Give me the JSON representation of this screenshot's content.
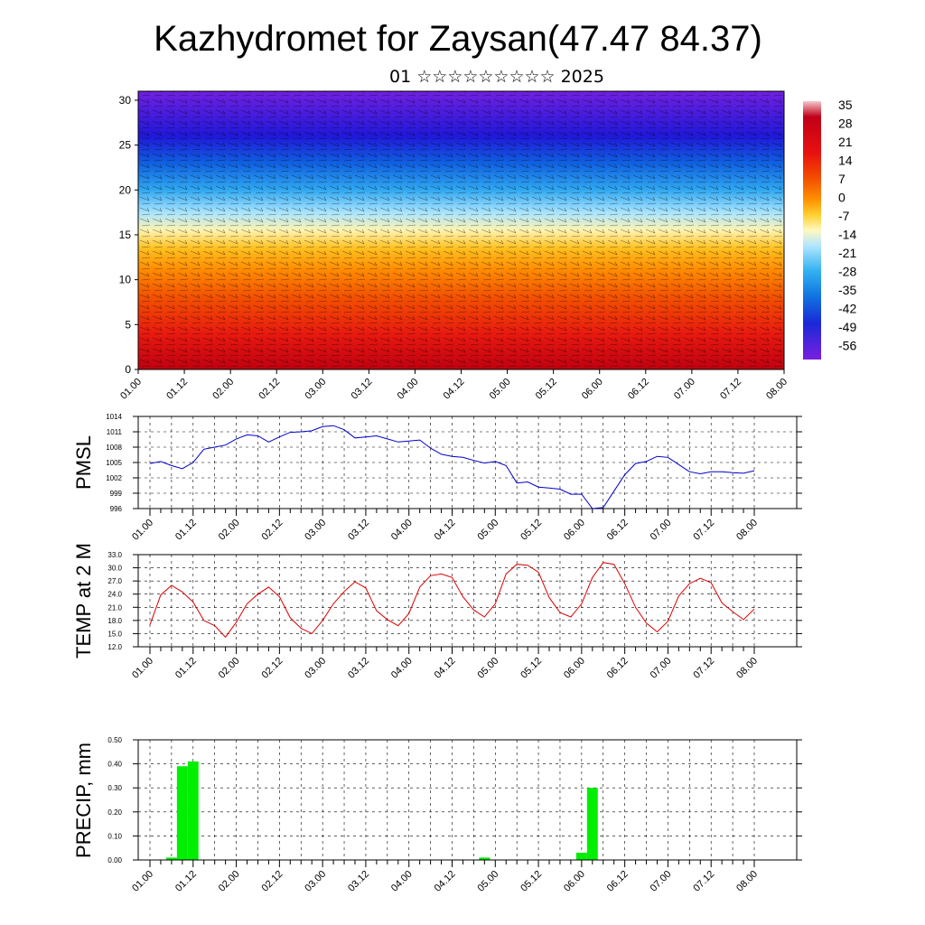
{
  "title": "Kazhydromet for Zaysan(47.47 84.37)",
  "subtitle": "01 ☆☆☆☆☆☆☆☆☆ 2025",
  "time_labels": [
    "01.00",
    "01.12",
    "02.00",
    "02.12",
    "03.00",
    "03.12",
    "04.00",
    "04.12",
    "05.00",
    "05.12",
    "06.00",
    "06.12",
    "07.00",
    "07.12",
    "08.00"
  ],
  "chart_data": [
    {
      "type": "heatmap",
      "title": "Kazhydromet for Zaysan(47.47 84.37)",
      "subtitle": "01 ☆☆☆☆☆☆☆☆☆ 2025",
      "ylim": [
        0,
        31
      ],
      "yticks": [
        "0",
        "5",
        "10",
        "15",
        "20",
        "25",
        "30"
      ],
      "x": [
        "01.00",
        "01.12",
        "02.00",
        "02.12",
        "03.00",
        "03.12",
        "04.00",
        "04.12",
        "05.00",
        "05.12",
        "06.00",
        "06.12",
        "07.00",
        "07.12",
        "08.00"
      ],
      "colorbar": {
        "labels": [
          "35",
          "28",
          "21",
          "14",
          "7",
          "0",
          "-7",
          "-14",
          "-21",
          "-28",
          "-35",
          "-42",
          "-49",
          "-56"
        ],
        "colors": [
          "#f5c8cc",
          "#b00018",
          "#e01010",
          "#f04a00",
          "#ff8c00",
          "#ffc000",
          "#ffe060",
          "#fff8c0",
          "#a0e0ff",
          "#30b0f0",
          "#1070e0",
          "#1830d0",
          "#2010e0",
          "#7a20e0"
        ]
      },
      "levels": [
        {
          "h": 0,
          "color": "#c00010"
        },
        {
          "h": 4,
          "color": "#e81a10"
        },
        {
          "h": 8,
          "color": "#f25000"
        },
        {
          "h": 11,
          "color": "#ff8a00"
        },
        {
          "h": 13.5,
          "color": "#ffc020"
        },
        {
          "h": 15.5,
          "color": "#fff4b0"
        },
        {
          "h": 17.5,
          "color": "#a8e4ff"
        },
        {
          "h": 20,
          "color": "#30a8f0"
        },
        {
          "h": 23,
          "color": "#1060e0"
        },
        {
          "h": 26,
          "color": "#2018d8"
        },
        {
          "h": 31,
          "color": "#7020e0"
        }
      ]
    },
    {
      "type": "line",
      "ylabel": "PMSL",
      "ylim": [
        996,
        1014
      ],
      "yticks": [
        "996",
        "999",
        "1002",
        "1005",
        "1008",
        "1011",
        "1014"
      ],
      "color": "#0000cc",
      "x": [
        0,
        3,
        6,
        9,
        12,
        15,
        18,
        21,
        24,
        27,
        30,
        33,
        36,
        39,
        42,
        45,
        48,
        51,
        54,
        57,
        60,
        63,
        66,
        69,
        72,
        75,
        78,
        81,
        84,
        87,
        90,
        93,
        96,
        99,
        102,
        105,
        108,
        111,
        114,
        117,
        120,
        123,
        126,
        129,
        132,
        135,
        138,
        141,
        144,
        147,
        150,
        153,
        156,
        159,
        162,
        165,
        168
      ],
      "values": [
        1004.8,
        1005.2,
        1004.4,
        1003.8,
        1005.0,
        1007.6,
        1008.0,
        1008.4,
        1009.6,
        1010.4,
        1010.2,
        1009.0,
        1010.0,
        1010.9,
        1011.0,
        1011.2,
        1012.0,
        1012.2,
        1011.4,
        1009.8,
        1010.0,
        1010.2,
        1009.6,
        1009.0,
        1009.2,
        1009.4,
        1007.8,
        1006.6,
        1006.2,
        1006.0,
        1005.4,
        1004.9,
        1005.2,
        1004.4,
        1001.0,
        1001.2,
        1000.2,
        1000.0,
        999.8,
        998.8,
        998.8,
        996.0,
        996.2,
        999.4,
        1002.6,
        1004.8,
        1005.2,
        1006.2,
        1006.0,
        1004.6,
        1003.2,
        1002.8,
        1003.2,
        1003.2,
        1003.0,
        1002.9,
        1003.4
      ]
    },
    {
      "type": "line",
      "ylabel": "TEMP at 2 M",
      "ylim": [
        12.0,
        33.0
      ],
      "yticks": [
        "12.0",
        "15.0",
        "18.0",
        "21.0",
        "24.0",
        "27.0",
        "30.0",
        "33.0"
      ],
      "color": "#dd0000",
      "x": [
        0,
        3,
        6,
        9,
        12,
        15,
        18,
        21,
        24,
        27,
        30,
        33,
        36,
        39,
        42,
        45,
        48,
        51,
        54,
        57,
        60,
        63,
        66,
        69,
        72,
        75,
        78,
        81,
        84,
        87,
        90,
        93,
        96,
        99,
        102,
        105,
        108,
        111,
        114,
        117,
        120,
        123,
        126,
        129,
        132,
        135,
        138,
        141,
        144,
        147,
        150,
        153,
        156,
        159,
        162,
        165,
        168
      ],
      "values": [
        17.0,
        23.8,
        26.0,
        24.5,
        22.2,
        18.0,
        16.8,
        14.2,
        17.6,
        21.8,
        24.0,
        25.6,
        23.4,
        18.6,
        16.2,
        15.0,
        18.0,
        21.8,
        24.6,
        26.8,
        25.4,
        20.2,
        18.2,
        16.8,
        19.6,
        25.6,
        28.2,
        28.6,
        27.8,
        23.4,
        20.4,
        18.8,
        21.8,
        28.6,
        30.8,
        30.6,
        29.0,
        23.2,
        19.8,
        18.8,
        21.8,
        27.8,
        31.2,
        30.8,
        26.4,
        21.0,
        17.4,
        15.4,
        17.8,
        23.6,
        26.4,
        27.6,
        26.6,
        22.0,
        20.0,
        18.2,
        20.6
      ]
    },
    {
      "type": "bar",
      "ylabel": "PRECIP, mm",
      "ylim": [
        0,
        0.5
      ],
      "yticks": [
        "0.00",
        "0.10",
        "0.20",
        "0.30",
        "0.40",
        "0.50"
      ],
      "color": "#00ee00",
      "x": [
        6,
        9,
        12,
        93,
        120,
        123
      ],
      "values": [
        0.01,
        0.39,
        0.41,
        0.01,
        0.03,
        0.3
      ]
    }
  ]
}
